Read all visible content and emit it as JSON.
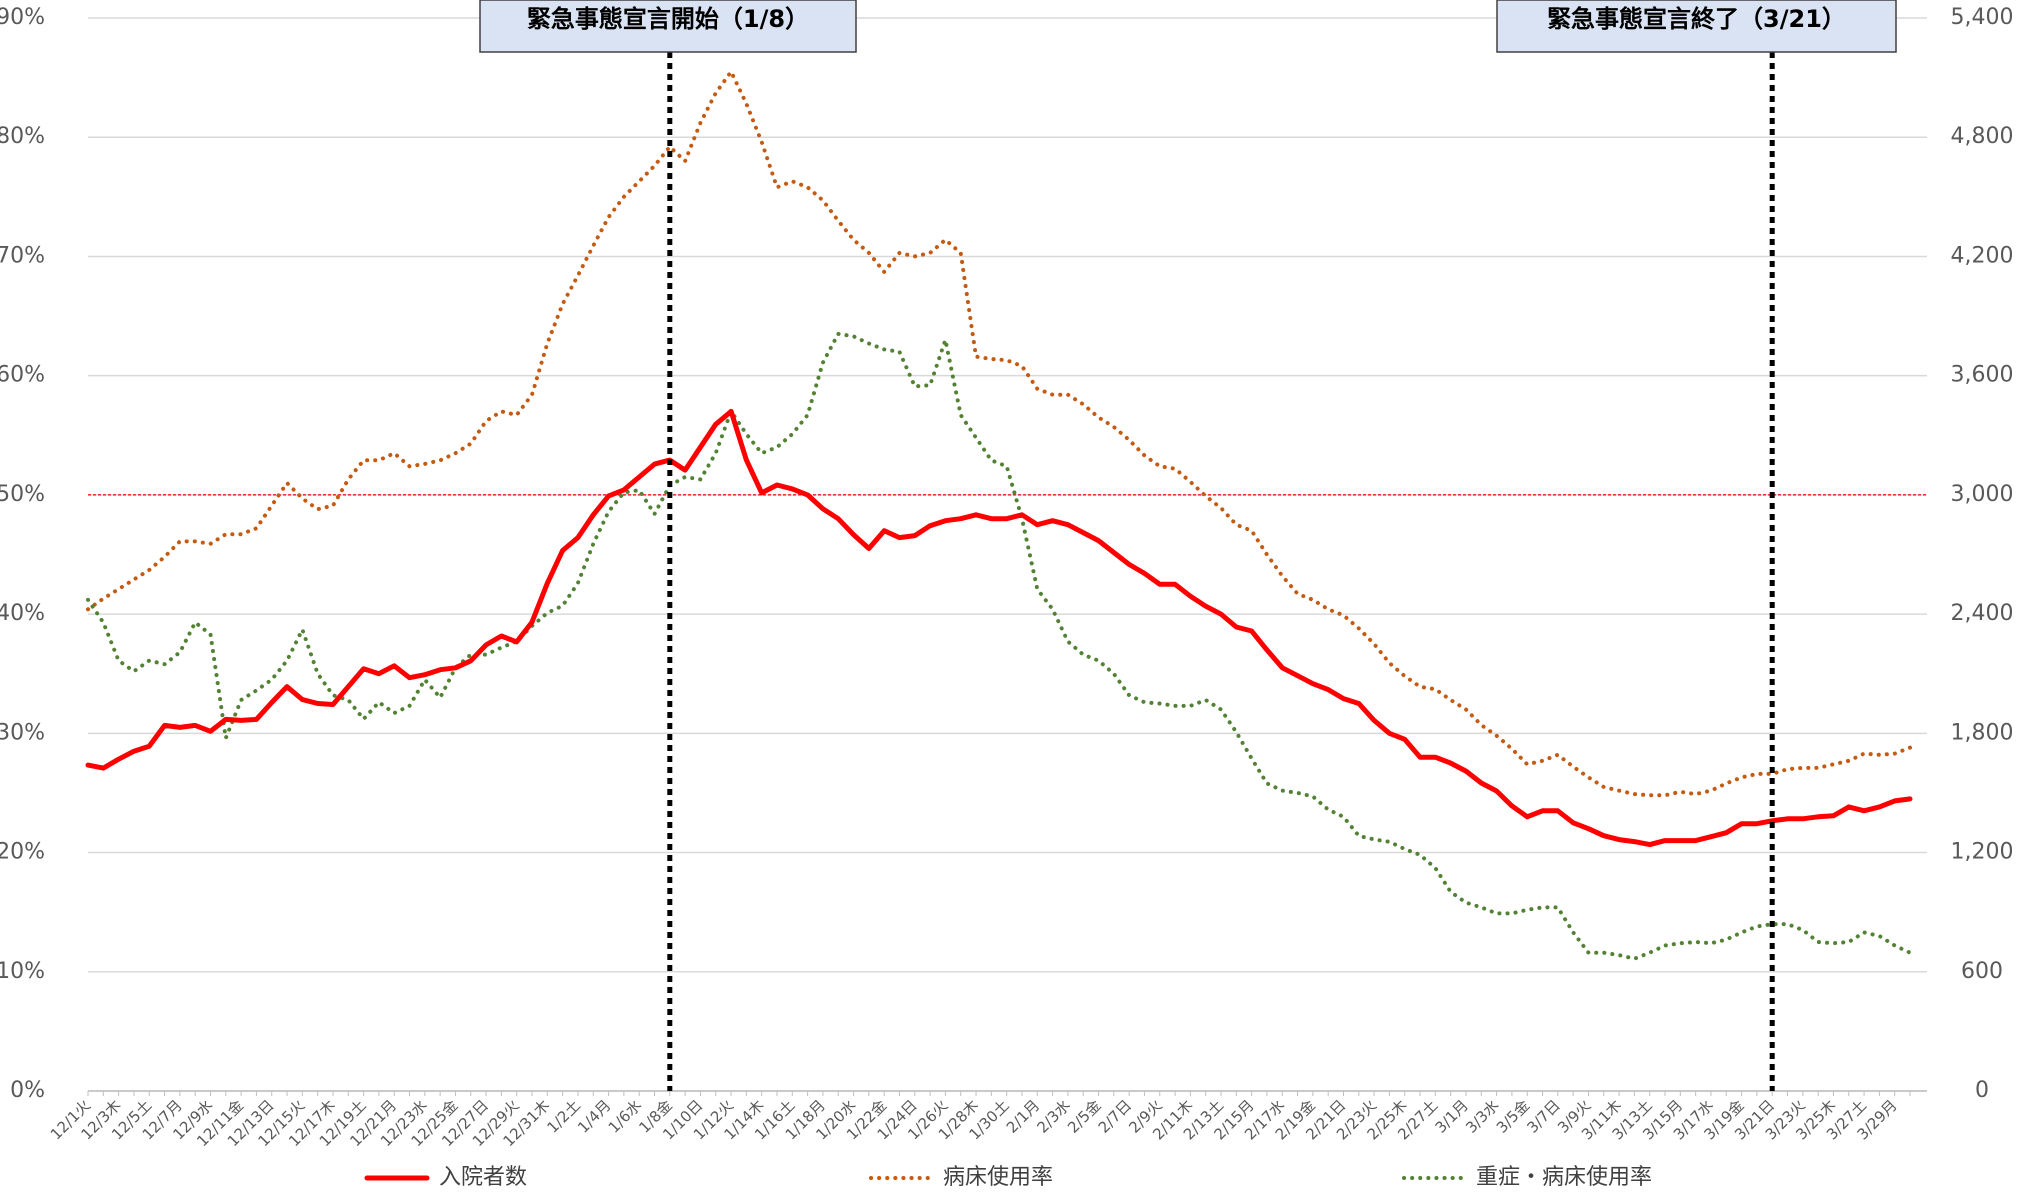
{
  "chart_data": {
    "type": "line",
    "categories": [
      "12/1火",
      null,
      "12/3木",
      null,
      "12/5土",
      null,
      "12/7月",
      null,
      "12/9水",
      null,
      "12/11金",
      null,
      "12/13日",
      null,
      "12/15火",
      null,
      "12/17木",
      null,
      "12/19土",
      null,
      "12/21月",
      null,
      "12/23水",
      null,
      "12/25金",
      null,
      "12/27日",
      null,
      "12/29火",
      null,
      "12/31木",
      null,
      "1/2土",
      null,
      "1/4月",
      null,
      "1/6水",
      null,
      "1/8金",
      null,
      "1/10日",
      null,
      "1/12火",
      null,
      "1/14木",
      null,
      "1/16土",
      null,
      "1/18月",
      null,
      "1/20水",
      null,
      "1/22金",
      null,
      "1/24日",
      null,
      "1/26火",
      null,
      "1/28木",
      null,
      "1/30土",
      null,
      "2/1月",
      null,
      "2/3水",
      null,
      "2/5金",
      null,
      "2/7日",
      null,
      "2/9火",
      null,
      "2/11木",
      null,
      "2/13土",
      null,
      "2/15月",
      null,
      "2/17水",
      null,
      "2/19金",
      null,
      "2/21日",
      null,
      "2/23火",
      null,
      "2/25木",
      null,
      "2/27土",
      null,
      "3/1月",
      null,
      "3/3水",
      null,
      "3/5金",
      null,
      "3/7日",
      null,
      "3/9火",
      null,
      "3/11木",
      null,
      "3/13土",
      null,
      "3/15月",
      null,
      "3/17水",
      null,
      "3/19金",
      null,
      "3/21日",
      null,
      "3/23火",
      null,
      "3/25木",
      null,
      "3/27土",
      null,
      "3/29月",
      null
    ],
    "series": [
      {
        "name": "入院者数",
        "color": "#ff0000",
        "style": "solid",
        "axis": "y2",
        "values": [
          1640,
          1625,
          1670,
          1710,
          1735,
          1840,
          1830,
          1840,
          1810,
          1870,
          1865,
          1870,
          1955,
          2035,
          1970,
          1950,
          1945,
          2035,
          2125,
          2100,
          2140,
          2080,
          2095,
          2120,
          2130,
          2165,
          2245,
          2290,
          2260,
          2360,
          2555,
          2720,
          2785,
          2900,
          2995,
          3025,
          3090,
          3155,
          3175,
          3125,
          3240,
          3355,
          3420,
          3175,
          3010,
          3050,
          3030,
          3000,
          2930,
          2880,
          2800,
          2730,
          2820,
          2785,
          2795,
          2845,
          2870,
          2880,
          2900,
          2880,
          2880,
          2900,
          2850,
          2870,
          2850,
          2810,
          2770,
          2710,
          2650,
          2605,
          2550,
          2550,
          2490,
          2440,
          2400,
          2335,
          2315,
          2220,
          2130,
          2090,
          2050,
          2020,
          1975,
          1950,
          1865,
          1800,
          1770,
          1680,
          1680,
          1650,
          1610,
          1550,
          1510,
          1435,
          1380,
          1410,
          1410,
          1350,
          1320,
          1285,
          1265,
          1255,
          1240,
          1260,
          1260,
          1260,
          1280,
          1300,
          1345,
          1345,
          1360,
          1370,
          1370,
          1380,
          1385,
          1430,
          1410,
          1430,
          1460,
          1470
        ]
      },
      {
        "name": "病床使用率",
        "color": "#c55a11",
        "style": "dotted",
        "values": [
          40.4,
          41.3,
          42.1,
          42.9,
          43.7,
          44.8,
          46.1,
          46.1,
          45.9,
          46.7,
          46.7,
          47.2,
          49.1,
          51,
          49.7,
          48.8,
          49.1,
          51.3,
          52.9,
          52.9,
          53.5,
          52.4,
          52.6,
          52.9,
          53.5,
          54.3,
          56.2,
          57,
          56.7,
          58.4,
          62.7,
          66,
          68.4,
          70.9,
          73.3,
          75,
          76.3,
          77.6,
          79.2,
          78,
          81.2,
          83.7,
          85.5,
          82.8,
          79.6,
          75.8,
          76.3,
          75.8,
          74.7,
          73,
          71.4,
          70.3,
          68.7,
          70.3,
          70,
          70.3,
          71.4,
          70.3,
          61.6,
          61.4,
          61.3,
          60.8,
          58.9,
          58.4,
          58.4,
          57.6,
          56.5,
          55.7,
          54.6,
          53.3,
          52.4,
          52.2,
          51.1,
          49.9,
          48.9,
          47.5,
          47,
          45,
          43.2,
          41.7,
          41.2,
          40.4,
          39.9,
          38.8,
          37.5,
          35.9,
          34.8,
          33.9,
          33.7,
          32.8,
          32,
          30.7,
          29.8,
          28.7,
          27.4,
          27.7,
          28.2,
          27.2,
          26.3,
          25.5,
          25.2,
          24.9,
          24.8,
          24.8,
          25.1,
          24.9,
          25.2,
          25.8,
          26.3,
          26.6,
          26.6,
          27,
          27.1,
          27.1,
          27.4,
          27.7,
          28.3,
          28.2,
          28.3,
          28.8
        ]
      },
      {
        "name": "重症・病床使用率",
        "color": "#548235",
        "style": "dotted",
        "values": [
          41.2,
          39.3,
          36.1,
          35.2,
          36.1,
          35.8,
          36.8,
          39.3,
          38.3,
          29.6,
          32.8,
          33.6,
          34.5,
          36.1,
          38.7,
          35,
          33.2,
          32.8,
          31.2,
          32.6,
          31.7,
          32.3,
          34.5,
          33,
          35.5,
          36.6,
          36.6,
          37.2,
          37.7,
          39,
          40.1,
          40.7,
          42.6,
          45.9,
          48.6,
          50.2,
          50.4,
          48.4,
          50.8,
          51.5,
          51.3,
          53.5,
          57,
          55.1,
          53.5,
          54,
          55.1,
          56.7,
          61.1,
          63.5,
          63.3,
          62.7,
          62.2,
          62,
          59.1,
          59.2,
          63,
          56.7,
          54.8,
          52.9,
          52.4,
          48,
          42.1,
          40.4,
          37.7,
          36.6,
          36.1,
          35,
          33.2,
          32.6,
          32.5,
          32.3,
          32.3,
          32.8,
          32,
          30.1,
          27.9,
          25.8,
          25.2,
          25,
          24.7,
          23.6,
          23,
          21.4,
          21.1,
          20.9,
          20.3,
          19.8,
          18.7,
          16.7,
          15.8,
          15.4,
          14.9,
          14.9,
          15.2,
          15.4,
          15.4,
          13.3,
          11.6,
          11.6,
          11.4,
          11.1,
          11.6,
          12.2,
          12.4,
          12.5,
          12.4,
          12.7,
          13.3,
          13.8,
          14,
          14,
          13.5,
          12.5,
          12.4,
          12.5,
          13.3,
          13,
          12.2,
          11.6
        ]
      }
    ],
    "ylim": [
      0,
      90
    ],
    "yticks": [
      {
        "value": 0,
        "label": "0%"
      },
      {
        "value": 10,
        "label": "10%"
      },
      {
        "value": 20,
        "label": "20%"
      },
      {
        "value": 30,
        "label": "30%"
      },
      {
        "value": 40,
        "label": "40%"
      },
      {
        "value": 50,
        "label": "50%"
      },
      {
        "value": 60,
        "label": "60%"
      },
      {
        "value": 70,
        "label": "70%"
      },
      {
        "value": 80,
        "label": "80%"
      },
      {
        "value": 90,
        "label": "90%"
      }
    ],
    "y2lim": [
      0,
      5400
    ],
    "y2ticks": [
      0,
      600,
      {
        "value": 1200,
        "label": "1,200"
      },
      {
        "value": 1800,
        "label": "1,800"
      },
      {
        "value": 2400,
        "label": "2,400"
      },
      {
        "value": 3000,
        "label": "3,000"
      },
      {
        "value": 3600,
        "label": "3,600"
      },
      {
        "value": 4200,
        "label": "4,200"
      },
      {
        "value": 4800,
        "label": "4,800"
      },
      {
        "value": 5400,
        "label": "5,400"
      }
    ],
    "grid": true,
    "reference_line": {
      "value": 50,
      "color": "#ff0000"
    },
    "annotations": [
      {
        "text": "緊急事態宣言開始（1/8）",
        "x": "1/8金"
      },
      {
        "text": "緊急事態宣言終了（3/21）",
        "x": "3/21日"
      }
    ],
    "legend": "bottom"
  }
}
